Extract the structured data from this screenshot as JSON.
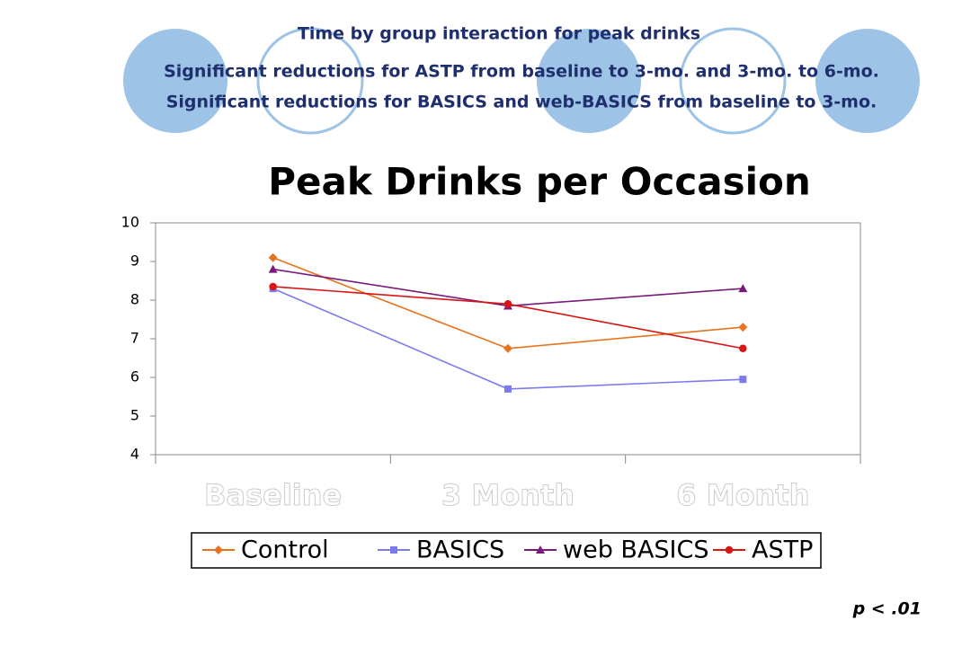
{
  "header": {
    "title": "Time by group interaction for peak drinks",
    "lines": [
      "Significant reductions for ASTP from baseline to 3-mo. and 3-mo. to 6-mo.",
      "Significant reductions for BASICS and web-BASICS from baseline to 3-mo."
    ]
  },
  "chart_data": {
    "type": "line",
    "title": "Peak Drinks per Occasion",
    "categories": [
      "Baseline",
      "3 Month",
      "6 Month"
    ],
    "series": [
      {
        "name": "Control",
        "color": "#e8731f",
        "marker": "diamond",
        "values": [
          9.1,
          6.75,
          7.3
        ]
      },
      {
        "name": "BASICS",
        "color": "#7b7bf0",
        "marker": "square",
        "values": [
          8.3,
          5.7,
          5.95
        ]
      },
      {
        "name": "web BASICS",
        "color": "#7a1a7a",
        "marker": "triangle",
        "values": [
          8.8,
          7.85,
          8.3
        ]
      },
      {
        "name": "ASTP",
        "color": "#d81515",
        "marker": "circle",
        "values": [
          8.35,
          7.9,
          6.75
        ]
      }
    ],
    "ylim": [
      4,
      10
    ],
    "yticks": [
      4,
      5,
      6,
      7,
      8,
      9,
      10
    ],
    "grid": false
  },
  "footnote": "p < .01"
}
